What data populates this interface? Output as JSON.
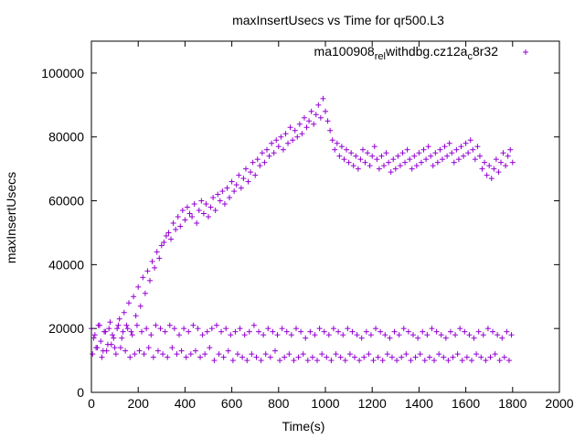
{
  "chart_data": {
    "type": "scatter",
    "title": "maxInsertUsecs vs Time for qr500.L3",
    "xlabel": "Time(s)",
    "ylabel": "maxInsertUsecs",
    "xlim": [
      0,
      2000
    ],
    "ylim": [
      0,
      110000
    ],
    "xticks": [
      0,
      200,
      400,
      600,
      800,
      1000,
      1200,
      1400,
      1600,
      1800,
      2000
    ],
    "yticks": [
      0,
      20000,
      40000,
      60000,
      80000,
      100000
    ],
    "grid": false,
    "legend_position": "top-right",
    "marker": "+",
    "series": [
      {
        "name": "ma100908_rel_withdbg.cz12a_c8r32",
        "legend_parts": [
          "ma100908",
          "rel",
          "withdbg.cz12a",
          "c",
          "8r32"
        ],
        "color": "#9400d3",
        "x": [
          0,
          10,
          20,
          30,
          40,
          50,
          60,
          70,
          80,
          90,
          100,
          110,
          120,
          130,
          140,
          150,
          160,
          170,
          180,
          190,
          200,
          210,
          220,
          230,
          240,
          250,
          260,
          270,
          280,
          290,
          300,
          310,
          320,
          330,
          340,
          350,
          360,
          370,
          380,
          390,
          400,
          410,
          420,
          430,
          440,
          450,
          460,
          470,
          480,
          490,
          500,
          510,
          520,
          530,
          540,
          550,
          560,
          570,
          580,
          590,
          600,
          610,
          620,
          630,
          640,
          650,
          660,
          670,
          680,
          690,
          700,
          710,
          720,
          730,
          740,
          750,
          760,
          770,
          780,
          790,
          800,
          810,
          820,
          830,
          840,
          850,
          860,
          870,
          880,
          890,
          900,
          910,
          920,
          930,
          940,
          950,
          960,
          970,
          980,
          990,
          1000,
          1010,
          1020,
          1030,
          1040,
          1050,
          1060,
          1070,
          1080,
          1090,
          1100,
          1110,
          1120,
          1130,
          1140,
          1150,
          1160,
          1170,
          1180,
          1190,
          1200,
          1210,
          1220,
          1230,
          1240,
          1250,
          1260,
          1270,
          1280,
          1290,
          1300,
          1310,
          1320,
          1330,
          1340,
          1350,
          1360,
          1370,
          1380,
          1390,
          1400,
          1410,
          1420,
          1430,
          1440,
          1450,
          1460,
          1470,
          1480,
          1490,
          1500,
          1510,
          1520,
          1530,
          1540,
          1550,
          1560,
          1570,
          1580,
          1590,
          1600,
          1610,
          1620,
          1630,
          1640,
          1650,
          1660,
          1670,
          1680,
          1690,
          1700,
          1710,
          1720,
          1730,
          1740,
          1750,
          1760,
          1770,
          1780,
          1790,
          1800,
          5,
          25,
          45,
          65,
          85,
          105,
          125,
          145,
          165,
          185,
          205,
          225,
          245,
          265,
          285,
          305,
          325,
          345,
          365,
          385,
          405,
          425,
          445,
          465,
          485,
          505,
          525,
          545,
          565,
          585,
          605,
          625,
          645,
          665,
          685,
          705,
          725,
          745,
          765,
          785,
          805,
          825,
          845,
          865,
          885,
          905,
          925,
          945,
          965,
          985,
          1005,
          1025,
          1045,
          1065,
          1085,
          1105,
          1125,
          1145,
          1165,
          1185,
          1205,
          1225,
          1245,
          1265,
          1285,
          1305,
          1325,
          1345,
          1365,
          1385,
          1405,
          1425,
          1445,
          1465,
          1485,
          1505,
          1525,
          1545,
          1565,
          1585,
          1605,
          1625,
          1645,
          1665,
          1685,
          1705,
          1725,
          1745,
          1765,
          1785,
          15,
          35,
          55,
          75,
          95,
          115,
          135,
          155,
          175,
          195,
          215,
          235,
          255,
          275,
          295,
          315,
          335,
          355,
          375,
          395,
          415,
          435,
          455,
          475,
          495,
          515,
          535,
          555,
          575,
          595,
          615,
          635,
          655,
          675,
          695,
          715,
          735,
          755,
          775,
          795,
          815,
          835,
          855,
          875,
          895,
          915,
          935,
          955,
          975,
          995,
          1015,
          1035,
          1055,
          1075,
          1095,
          1115,
          1135,
          1155,
          1175,
          1195,
          1215,
          1235,
          1255,
          1275,
          1295,
          1315,
          1335,
          1355,
          1375,
          1395,
          1415,
          1435,
          1455,
          1475,
          1495,
          1515,
          1535,
          1555,
          1575,
          1595,
          1615,
          1635,
          1655,
          1675,
          1695,
          1715,
          1735,
          1755,
          1775,
          1795
        ],
        "y": [
          20000,
          17000,
          14000,
          21000,
          16000,
          13000,
          19000,
          15000,
          22000,
          18000,
          14000,
          20000,
          23000,
          17000,
          25000,
          21000,
          28000,
          19000,
          30000,
          24000,
          33000,
          27000,
          36000,
          31000,
          38000,
          35000,
          41000,
          39000,
          44000,
          42000,
          46000,
          47000,
          49000,
          50000,
          48000,
          53000,
          51000,
          55000,
          52000,
          57000,
          54000,
          58000,
          56000,
          55000,
          59000,
          53000,
          57000,
          60000,
          56000,
          59000,
          55000,
          58000,
          61000,
          57000,
          62000,
          60000,
          63000,
          59000,
          64000,
          61000,
          66000,
          63000,
          65000,
          68000,
          64000,
          67000,
          70000,
          66000,
          69000,
          72000,
          68000,
          73000,
          71000,
          75000,
          72000,
          76000,
          74000,
          78000,
          75000,
          79000,
          77000,
          80000,
          76000,
          81000,
          78000,
          83000,
          79000,
          82000,
          80000,
          84000,
          81000,
          86000,
          83000,
          85000,
          88000,
          84000,
          87000,
          90000,
          86000,
          92000,
          88000,
          85000,
          82000,
          79000,
          76000,
          78000,
          74000,
          77000,
          73000,
          76000,
          72000,
          75000,
          71000,
          74000,
          70000,
          73000,
          76000,
          72000,
          75000,
          71000,
          74000,
          77000,
          73000,
          70000,
          74000,
          71000,
          75000,
          72000,
          69000,
          73000,
          70000,
          74000,
          71000,
          75000,
          72000,
          76000,
          73000,
          70000,
          74000,
          71000,
          75000,
          72000,
          76000,
          73000,
          77000,
          74000,
          71000,
          75000,
          72000,
          76000,
          73000,
          77000,
          74000,
          78000,
          75000,
          72000,
          76000,
          73000,
          77000,
          74000,
          78000,
          75000,
          79000,
          76000,
          73000,
          77000,
          74000,
          70000,
          72000,
          68000,
          71000,
          67000,
          70000,
          73000,
          69000,
          72000,
          75000,
          71000,
          74000,
          76000,
          72000,
          12000,
          14000,
          11000,
          13000,
          15000,
          12000,
          14000,
          13000,
          11000,
          12000,
          13000,
          12000,
          14000,
          11000,
          13000,
          12000,
          11000,
          14000,
          12000,
          13000,
          11000,
          12000,
          13000,
          11000,
          12000,
          14000,
          10000,
          12000,
          11000,
          13000,
          10000,
          12000,
          11000,
          10000,
          12000,
          11000,
          10000,
          12000,
          11000,
          13000,
          10000,
          11000,
          12000,
          10000,
          11000,
          12000,
          10000,
          11000,
          10000,
          12000,
          11000,
          10000,
          12000,
          11000,
          10000,
          12000,
          11000,
          10000,
          11000,
          12000,
          10000,
          11000,
          10000,
          12000,
          11000,
          10000,
          11000,
          12000,
          10000,
          11000,
          12000,
          10000,
          11000,
          10000,
          12000,
          11000,
          10000,
          11000,
          12000,
          10000,
          11000,
          10000,
          12000,
          11000,
          10000,
          11000,
          12000,
          10000,
          11000,
          10000,
          18000,
          21000,
          19000,
          20000,
          17000,
          21000,
          19000,
          20000,
          18000,
          21000,
          19000,
          20000,
          18000,
          21000,
          20000,
          19000,
          21000,
          20000,
          18000,
          20000,
          19000,
          21000,
          20000,
          18000,
          19000,
          20000,
          21000,
          19000,
          20000,
          18000,
          19000,
          20000,
          18000,
          19000,
          21000,
          19000,
          18000,
          20000,
          19000,
          18000,
          20000,
          19000,
          18000,
          20000,
          19000,
          17000,
          19000,
          18000,
          20000,
          19000,
          18000,
          20000,
          19000,
          18000,
          20000,
          19000,
          18000,
          17000,
          19000,
          18000,
          20000,
          19000,
          18000,
          17000,
          19000,
          18000,
          20000,
          19000,
          18000,
          17000,
          19000,
          18000,
          20000,
          19000,
          18000,
          17000,
          19000,
          18000,
          20000,
          19000,
          18000,
          17000,
          19000,
          18000,
          20000,
          19000,
          18000,
          17000,
          19000,
          18000
        ]
      }
    ]
  }
}
